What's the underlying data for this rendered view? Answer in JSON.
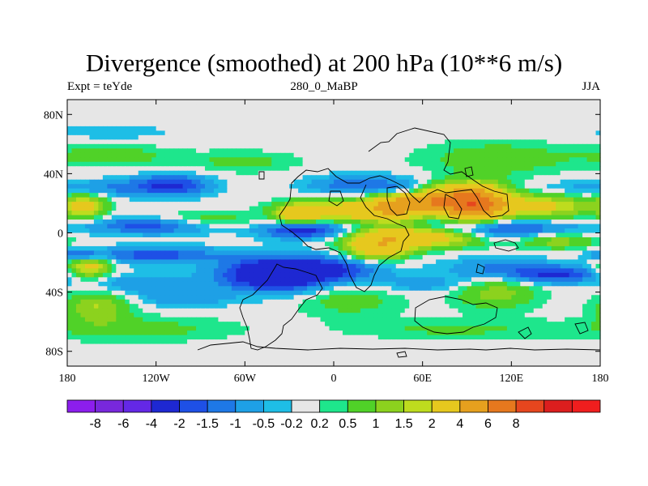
{
  "chart_data": {
    "type": "heatmap",
    "title": "Divergence (smoothed) at 200 hPa (10**6 m/s)",
    "subtitle_left": "Expt = teYde",
    "subtitle_center": "280_0_MaBP",
    "subtitle_right": "JJA",
    "x_range": [
      -180,
      180
    ],
    "y_range": [
      -90,
      90
    ],
    "x_ticks": [
      {
        "value": -180,
        "label": "180"
      },
      {
        "value": -120,
        "label": "120W"
      },
      {
        "value": -60,
        "label": "60W"
      },
      {
        "value": 0,
        "label": "0"
      },
      {
        "value": 60,
        "label": "60E"
      },
      {
        "value": 120,
        "label": "120E"
      },
      {
        "value": 180,
        "label": "180"
      }
    ],
    "y_ticks": [
      {
        "value": 80,
        "label": "80N"
      },
      {
        "value": 40,
        "label": "40N"
      },
      {
        "value": 0,
        "label": "0"
      },
      {
        "value": -40,
        "label": "40S"
      },
      {
        "value": -80,
        "label": "80S"
      }
    ],
    "colorbar": {
      "colors": [
        "#8c1eed",
        "#7828dc",
        "#6428e6",
        "#1e28d2",
        "#1e50e6",
        "#1e78e6",
        "#1ea0e6",
        "#1ebee6",
        "#e6e6e6",
        "#1ee68c",
        "#50d228",
        "#8cd21e",
        "#bedc1e",
        "#e6c81e",
        "#e6a01e",
        "#e6781e",
        "#e6461e",
        "#dc1e1e",
        "#f01e1e"
      ],
      "labels": [
        "-8",
        "-6",
        "-4",
        "-2",
        "-1.5",
        "-1",
        "-0.5",
        "-0.2",
        "0.2",
        "0.5",
        "1",
        "1.5",
        "2",
        "4",
        "6",
        "8"
      ]
    },
    "features": [
      {
        "lon": 95,
        "lat": 20,
        "slon": 15,
        "slat": 8,
        "v": 7
      },
      {
        "lon": 65,
        "lat": 22,
        "slon": 15,
        "slat": 6,
        "v": 5
      },
      {
        "lon": 40,
        "lat": 18,
        "slon": 12,
        "slat": 7,
        "v": 3.5
      },
      {
        "lon": 140,
        "lat": 18,
        "slon": 25,
        "slat": 6,
        "v": 2.2
      },
      {
        "lon": 5,
        "lat": 15,
        "slon": 25,
        "slat": 5,
        "v": 3
      },
      {
        "lon": -25,
        "lat": 12,
        "slon": 10,
        "slat": 5,
        "v": 2
      },
      {
        "lon": 60,
        "lat": -2,
        "slon": 30,
        "slat": 5,
        "v": 4
      },
      {
        "lon": 30,
        "lat": -10,
        "slon": 15,
        "slat": 6,
        "v": 3
      },
      {
        "lon": -168,
        "lat": 18,
        "slon": 10,
        "slat": 6,
        "v": 2.2
      },
      {
        "lon": -165,
        "lat": -22,
        "slon": 10,
        "slat": 6,
        "v": 2.5
      },
      {
        "lon": -90,
        "lat": 8,
        "slon": 25,
        "slat": 4,
        "v": 1.2
      },
      {
        "lon": 150,
        "lat": -5,
        "slon": 20,
        "slat": 4,
        "v": 1.5
      },
      {
        "lon": 110,
        "lat": -40,
        "slon": 20,
        "slat": 8,
        "v": 1.3
      },
      {
        "lon": -150,
        "lat": 52,
        "slon": 30,
        "slat": 5,
        "v": 0.8
      },
      {
        "lon": -60,
        "lat": 48,
        "slon": 25,
        "slat": 5,
        "v": 0.7
      },
      {
        "lon": 110,
        "lat": 50,
        "slon": 35,
        "slat": 8,
        "v": 0.9
      },
      {
        "lon": 10,
        "lat": -45,
        "slon": 25,
        "slat": 8,
        "v": 0.8
      },
      {
        "lon": -130,
        "lat": -65,
        "slon": 45,
        "slat": 6,
        "v": 0.7
      },
      {
        "lon": 80,
        "lat": -65,
        "slon": 50,
        "slat": 5,
        "v": 0.6
      },
      {
        "lon": -160,
        "lat": -50,
        "slon": 15,
        "slat": 8,
        "v": 1.5
      },
      {
        "lon": -40,
        "lat": -28,
        "slon": 25,
        "slat": 8,
        "v": -3.5
      },
      {
        "lon": -20,
        "lat": 2,
        "slon": 20,
        "slat": 4,
        "v": -2.5
      },
      {
        "lon": -120,
        "lat": 5,
        "slon": 30,
        "slat": 4,
        "v": -2
      },
      {
        "lon": -120,
        "lat": -15,
        "slon": 30,
        "slat": 4,
        "v": -1.8
      },
      {
        "lon": 100,
        "lat": 2,
        "slon": 40,
        "slat": 5,
        "v": -2.5
      },
      {
        "lon": 150,
        "lat": -28,
        "slon": 20,
        "slat": 4,
        "v": -2
      },
      {
        "lon": -170,
        "lat": -15,
        "slon": 10,
        "slat": 3,
        "v": -2
      },
      {
        "lon": -110,
        "lat": 32,
        "slon": 18,
        "slat": 5,
        "v": -2.2
      },
      {
        "lon": -130,
        "lat": -35,
        "slon": 30,
        "slat": 5,
        "v": -1
      },
      {
        "lon": 20,
        "lat": 32,
        "slon": 25,
        "slat": 5,
        "v": -1.5
      },
      {
        "lon": 0,
        "lat": -25,
        "slon": 25,
        "slat": 6,
        "v": -1.8
      },
      {
        "lon": 110,
        "lat": -25,
        "slon": 25,
        "slat": 6,
        "v": -1.2
      },
      {
        "lon": 50,
        "lat": 28,
        "slon": 12,
        "slat": 4,
        "v": -1.8
      },
      {
        "lon": -155,
        "lat": 30,
        "slon": 20,
        "slat": 4,
        "v": -1
      },
      {
        "lon": -100,
        "lat": -45,
        "slon": 20,
        "slat": 4,
        "v": -0.8
      },
      {
        "lon": 60,
        "lat": -35,
        "slon": 20,
        "slat": 4,
        "v": -0.8
      },
      {
        "lon": 160,
        "lat": 30,
        "slon": 20,
        "slat": 4,
        "v": -0.6
      },
      {
        "lon": -150,
        "lat": 68,
        "slon": 30,
        "slat": 4,
        "v": -0.4
      }
    ]
  }
}
